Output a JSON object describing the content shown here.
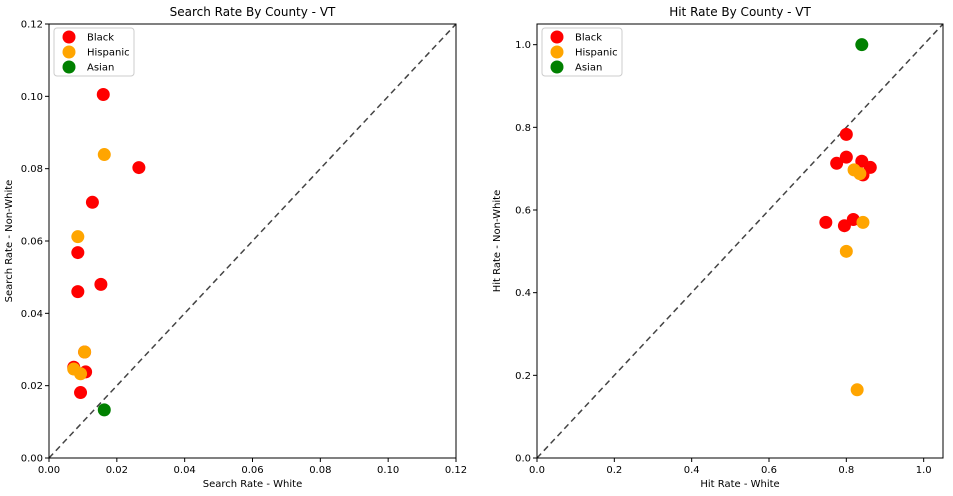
{
  "chart_data": [
    {
      "type": "scatter",
      "title": "Search Rate By County - VT",
      "xlabel": "Search Rate - White",
      "ylabel": "Search Rate - Non-White",
      "xlim": [
        0,
        0.12
      ],
      "ylim": [
        0,
        0.12
      ],
      "xticks": [
        "0.00",
        "0.02",
        "0.04",
        "0.06",
        "0.08",
        "0.10",
        "0.12"
      ],
      "yticks": [
        "0.00",
        "0.02",
        "0.04",
        "0.06",
        "0.08",
        "0.10",
        "0.12"
      ],
      "diagonal": true,
      "legend_position": "upper-left",
      "series": [
        {
          "name": "Black",
          "color": "#ff0000",
          "points": [
            {
              "x": 0.016,
              "y": 0.1005
            },
            {
              "x": 0.0265,
              "y": 0.0803
            },
            {
              "x": 0.0128,
              "y": 0.0707
            },
            {
              "x": 0.0085,
              "y": 0.0568
            },
            {
              "x": 0.0085,
              "y": 0.046
            },
            {
              "x": 0.0153,
              "y": 0.048
            },
            {
              "x": 0.0105,
              "y": 0.0293
            },
            {
              "x": 0.0073,
              "y": 0.0251
            },
            {
              "x": 0.0108,
              "y": 0.0238
            },
            {
              "x": 0.0093,
              "y": 0.0181
            }
          ]
        },
        {
          "name": "Hispanic",
          "color": "#ffa500",
          "points": [
            {
              "x": 0.0163,
              "y": 0.0839
            },
            {
              "x": 0.0085,
              "y": 0.0612
            },
            {
              "x": 0.0105,
              "y": 0.0293
            },
            {
              "x": 0.0073,
              "y": 0.0246
            },
            {
              "x": 0.0093,
              "y": 0.0233
            }
          ]
        },
        {
          "name": "Asian",
          "color": "#008000",
          "points": [
            {
              "x": 0.0163,
              "y": 0.0133
            }
          ]
        }
      ]
    },
    {
      "type": "scatter",
      "title": "Hit Rate By County - VT",
      "xlabel": "Hit Rate - White",
      "ylabel": "Hit Rate - Non-White",
      "xlim": [
        0,
        1.05
      ],
      "ylim": [
        0,
        1.05
      ],
      "xticks": [
        "0.0",
        "0.2",
        "0.4",
        "0.6",
        "0.8",
        "1.0"
      ],
      "yticks": [
        "0.0",
        "0.2",
        "0.4",
        "0.6",
        "0.8",
        "1.0"
      ],
      "diagonal": true,
      "legend_position": "upper-left",
      "series": [
        {
          "name": "Black",
          "color": "#ff0000",
          "points": [
            {
              "x": 0.8,
              "y": 0.783
            },
            {
              "x": 0.775,
              "y": 0.713
            },
            {
              "x": 0.8,
              "y": 0.728
            },
            {
              "x": 0.84,
              "y": 0.718
            },
            {
              "x": 0.862,
              "y": 0.703
            },
            {
              "x": 0.843,
              "y": 0.685
            },
            {
              "x": 0.747,
              "y": 0.57
            },
            {
              "x": 0.795,
              "y": 0.562
            },
            {
              "x": 0.818,
              "y": 0.577
            }
          ]
        },
        {
          "name": "Hispanic",
          "color": "#ffa500",
          "points": [
            {
              "x": 0.82,
              "y": 0.697
            },
            {
              "x": 0.835,
              "y": 0.688
            },
            {
              "x": 0.843,
              "y": 0.57
            },
            {
              "x": 0.8,
              "y": 0.5
            },
            {
              "x": 0.828,
              "y": 0.165
            }
          ]
        },
        {
          "name": "Asian",
          "color": "#008000",
          "points": [
            {
              "x": 0.84,
              "y": 1.0
            }
          ]
        }
      ]
    }
  ]
}
